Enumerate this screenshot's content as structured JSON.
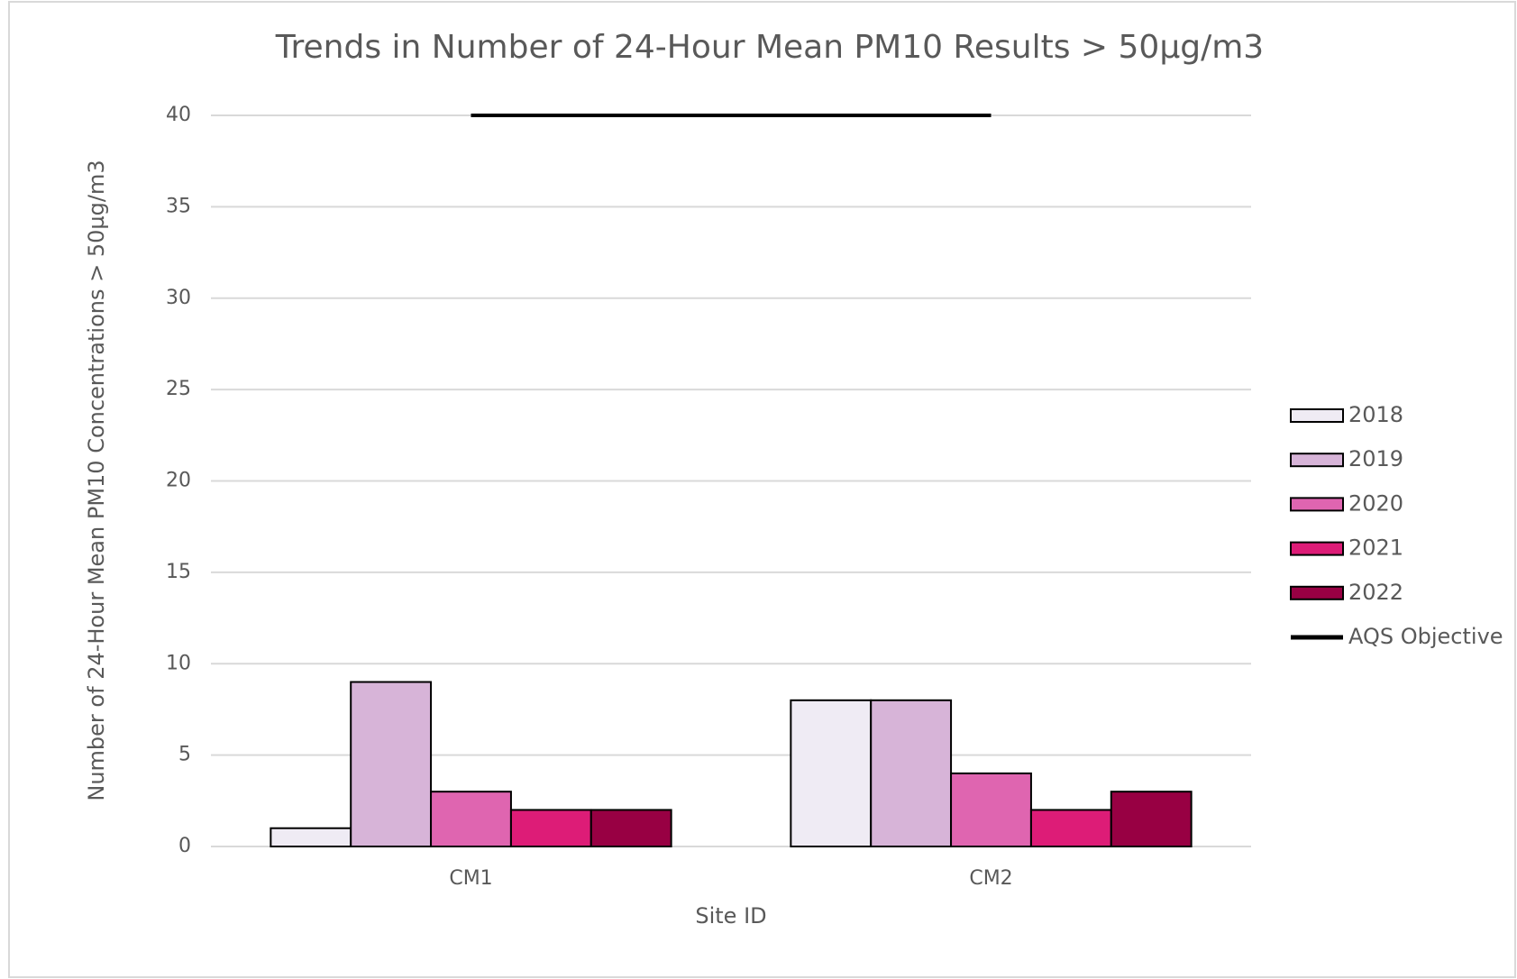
{
  "chart_data": {
    "type": "bar",
    "title": "Trends in Number of 24-Hour Mean PM10 Results > 50µg/m3",
    "x_label": "Site ID",
    "y_label": "Number of 24-Hour Mean PM10 Concentrations > 50µg/m3",
    "categories": [
      "CM1",
      "CM2"
    ],
    "series": [
      {
        "name": "2018",
        "color": "#efebf4",
        "values": [
          1,
          8
        ]
      },
      {
        "name": "2019",
        "color": "#d7b4d8",
        "values": [
          9,
          8
        ]
      },
      {
        "name": "2020",
        "color": "#df65b0",
        "values": [
          3,
          4
        ]
      },
      {
        "name": "2021",
        "color": "#dd1c77",
        "values": [
          2,
          2
        ]
      },
      {
        "name": "2022",
        "color": "#980043",
        "values": [
          2,
          3
        ]
      },
      {
        "name": "AQS Objective",
        "type": "line",
        "color": "#000000",
        "values": [
          40,
          40
        ]
      }
    ],
    "ylim": [
      0,
      40
    ],
    "yticks": [
      0,
      5,
      10,
      15,
      20,
      25,
      30,
      35,
      40
    ],
    "grid": true,
    "legend": "right"
  }
}
